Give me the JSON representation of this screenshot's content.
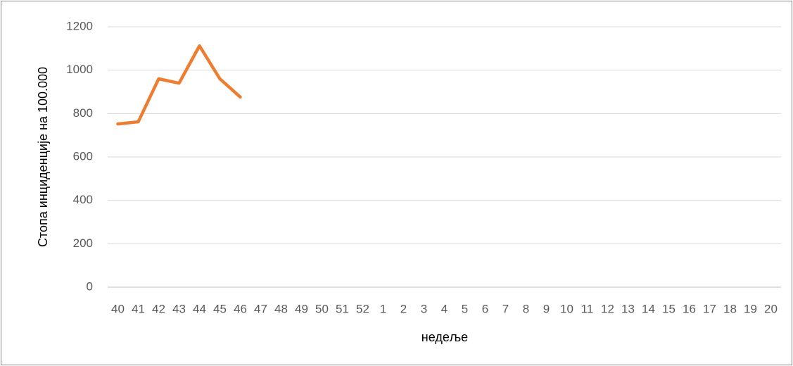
{
  "chart_data": {
    "type": "line",
    "x_label": "недеље",
    "y_label": "Стопа инциденције на 100.000",
    "categories": [
      40,
      41,
      42,
      43,
      44,
      45,
      46,
      47,
      48,
      49,
      50,
      51,
      52,
      1,
      2,
      3,
      4,
      5,
      6,
      7,
      8,
      9,
      10,
      11,
      12,
      13,
      14,
      15,
      16,
      17,
      18,
      19,
      20
    ],
    "values": [
      752,
      762,
      960,
      940,
      1112,
      960,
      876,
      null,
      null,
      null,
      null,
      null,
      null,
      null,
      null,
      null,
      null,
      null,
      null,
      null,
      null,
      null,
      null,
      null,
      null,
      null,
      null,
      null,
      null,
      null,
      null,
      null,
      null
    ],
    "color": "#ed7d31",
    "ylim": [
      0,
      1200
    ],
    "yticks": [
      0,
      200,
      400,
      600,
      800,
      1000,
      1200
    ],
    "grid": true
  }
}
